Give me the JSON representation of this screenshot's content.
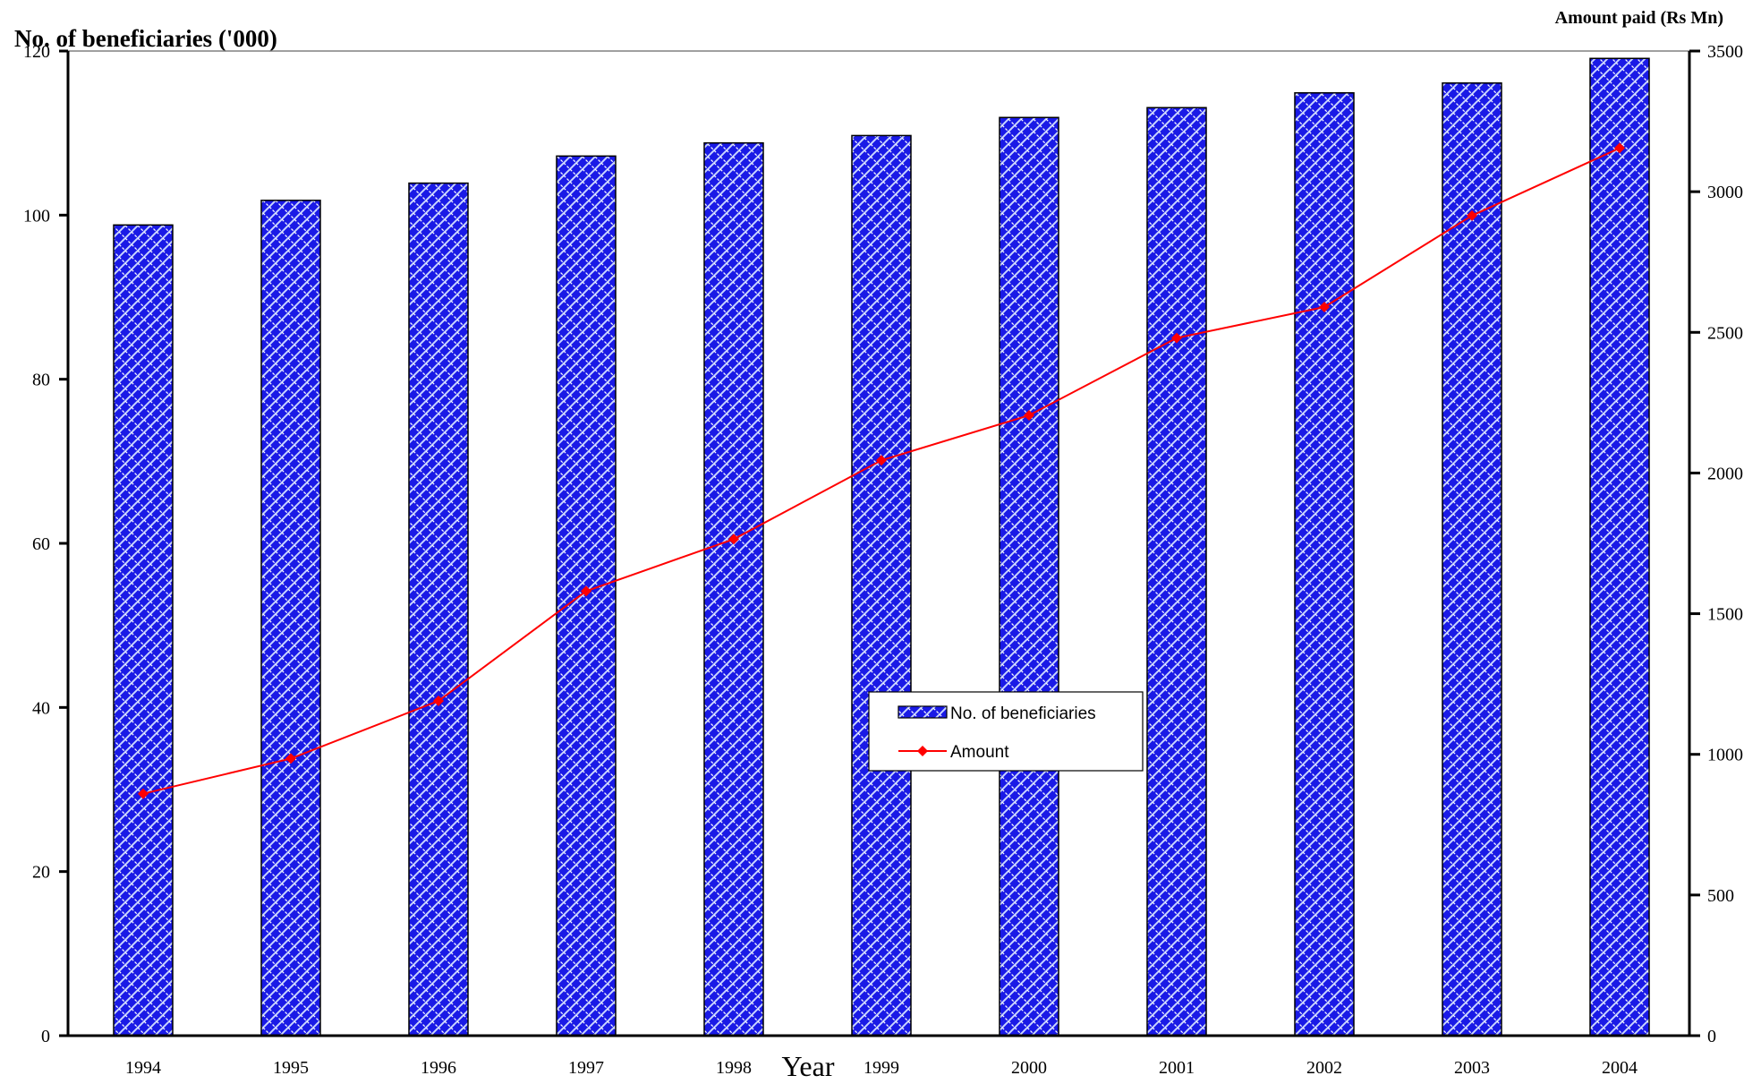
{
  "colors": {
    "bar_fill": "#1a1ae6",
    "bar_hatch": "#c8d4ff",
    "line": "#ff0000",
    "axis": "#000000"
  },
  "chart_data": {
    "type": "bar",
    "combo": "bar+line",
    "title": "",
    "xlabel": "Year",
    "ylabel_left": "No. of beneficiaries ('000)",
    "ylabel_right": "Amount paid (Rs Mn)",
    "categories": [
      "1994",
      "1995",
      "1996",
      "1997",
      "1998",
      "1999",
      "2000",
      "2001",
      "2002",
      "2003",
      "2004"
    ],
    "series": [
      {
        "name": "No. of beneficiaries",
        "type": "bar",
        "axis": "left",
        "values": [
          98.8,
          101.8,
          103.9,
          107.2,
          108.8,
          109.7,
          111.9,
          113.1,
          114.9,
          116.1,
          119.1
        ]
      },
      {
        "name": "Amount",
        "type": "line",
        "axis": "right",
        "values": [
          860,
          985,
          1190,
          1580,
          1765,
          2045,
          2205,
          2480,
          2590,
          2915,
          3155
        ]
      }
    ],
    "ylim_left": [
      0,
      120
    ],
    "yticks_left": [
      0,
      20,
      40,
      60,
      80,
      100,
      120
    ],
    "ylim_right": [
      0,
      3500
    ],
    "yticks_right": [
      0,
      500,
      1000,
      1500,
      2000,
      2500,
      3000,
      3500
    ],
    "grid": false,
    "legend_position": "center"
  }
}
